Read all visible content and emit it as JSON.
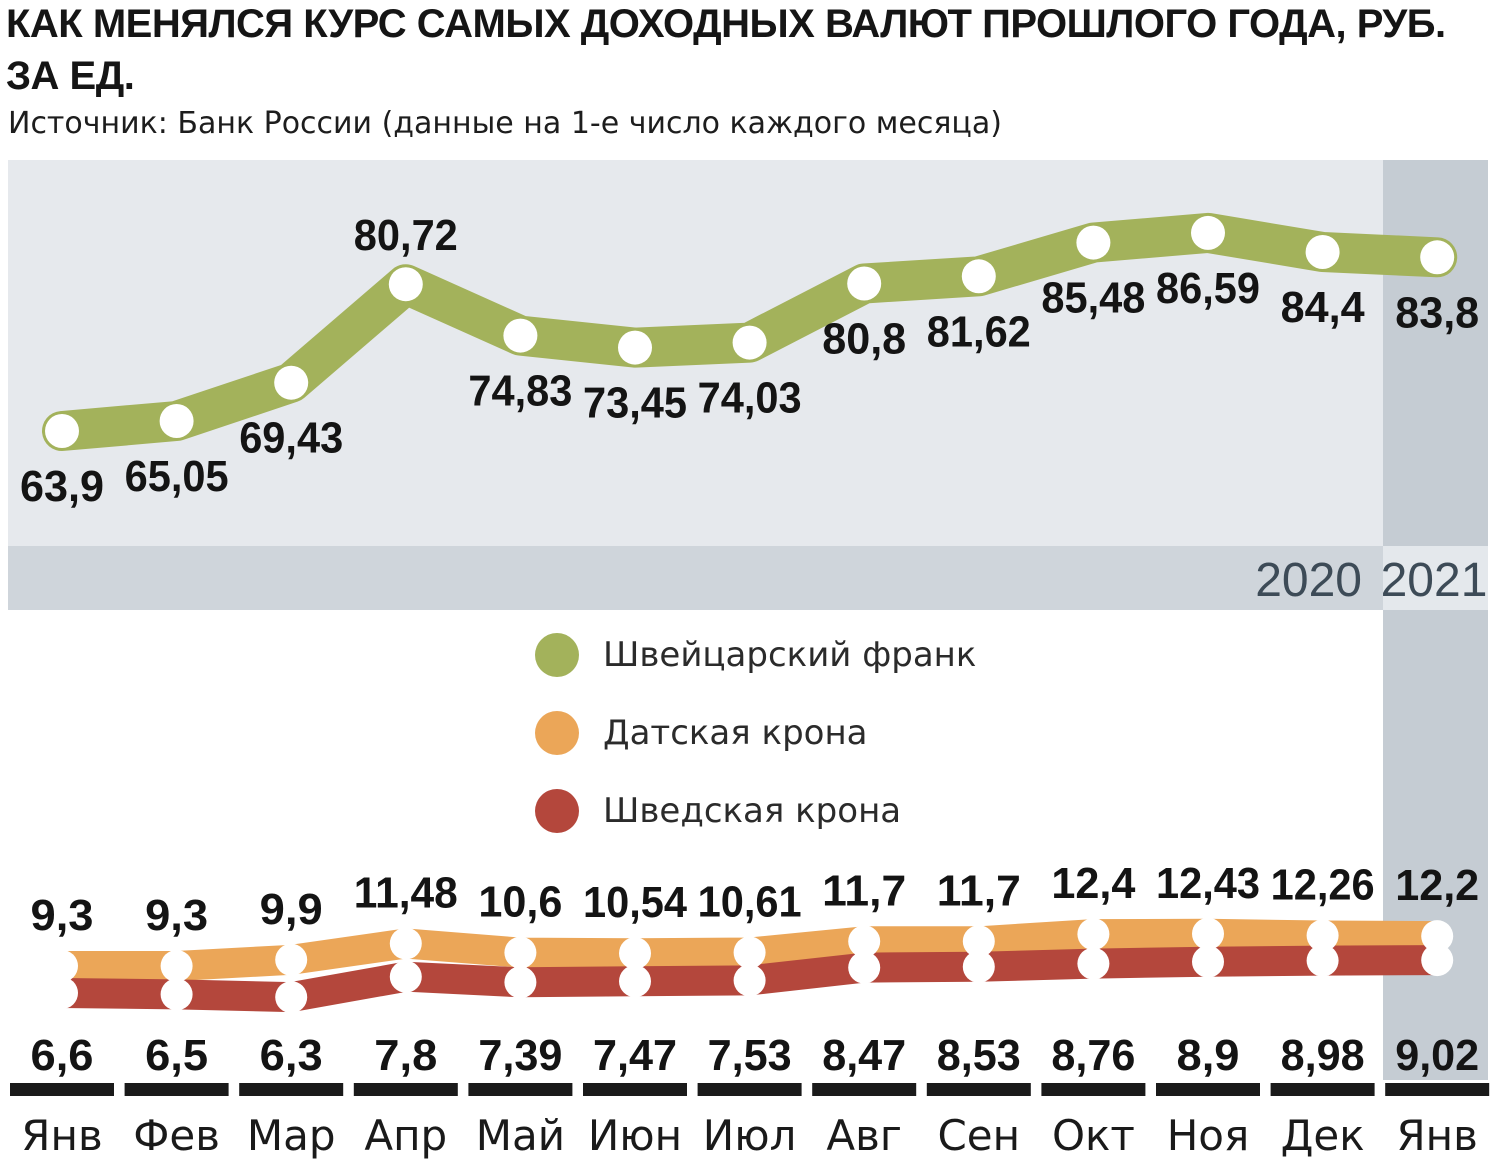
{
  "title": "КАК МЕНЯЛСЯ КУРС САМЫХ ДОХОДНЫХ ВАЛЮТ ПРОШЛОГО ГОДА, РУБ. ЗА ЕД.",
  "subtitle": "Источник: Банк России (данные на 1-е число каждого месяца)",
  "colors": {
    "chf": "#a3b25b",
    "dkk": "#eba658",
    "sek": "#b4473c",
    "panel": "#e6e9ed",
    "highlight": "#c5ccd3",
    "band": "#cfd5db",
    "axis": "#1a1a1a"
  },
  "chart_data": {
    "type": "line",
    "categories": [
      "Янв",
      "Фев",
      "Мар",
      "Апр",
      "Май",
      "Июн",
      "Июл",
      "Авг",
      "Сен",
      "Окт",
      "Ноя",
      "Дек",
      "Янв"
    ],
    "years": [
      {
        "label": "2020",
        "from": 0,
        "to": 11
      },
      {
        "label": "2021",
        "from": 12,
        "to": 12
      }
    ],
    "series": [
      {
        "name": "Швейцарский франк",
        "key": "chf",
        "values": [
          63.9,
          65.05,
          69.43,
          80.72,
          74.83,
          73.45,
          74.03,
          80.8,
          81.62,
          85.48,
          86.59,
          84.4,
          83.8
        ],
        "labels": [
          "63,9",
          "65,05",
          "69,43",
          "80,72",
          "74,83",
          "73,45",
          "74,03",
          "80,8",
          "81,62",
          "85,48",
          "86,59",
          "84,4",
          "83,8"
        ]
      },
      {
        "name": "Датская крона",
        "key": "dkk",
        "values": [
          9.3,
          9.3,
          9.9,
          11.48,
          10.6,
          10.54,
          10.61,
          11.7,
          11.7,
          12.4,
          12.43,
          12.26,
          12.2
        ],
        "labels": [
          "9,3",
          "9,3",
          "9,9",
          "11,48",
          "10,6",
          "10,54",
          "10,61",
          "11,7",
          "11,7",
          "12,4",
          "12,43",
          "12,26",
          "12,2"
        ]
      },
      {
        "name": "Шведская крона",
        "key": "sek",
        "values": [
          6.6,
          6.5,
          6.3,
          7.8,
          7.39,
          7.47,
          7.53,
          8.47,
          8.53,
          8.76,
          8.9,
          8.98,
          9.02
        ],
        "labels": [
          "6,6",
          "6,5",
          "6,3",
          "7,8",
          "7,39",
          "7,47",
          "7,53",
          "8,47",
          "8,53",
          "8,76",
          "8,9",
          "8,98",
          "9,02"
        ]
      }
    ],
    "legend": "center",
    "grid": false
  }
}
